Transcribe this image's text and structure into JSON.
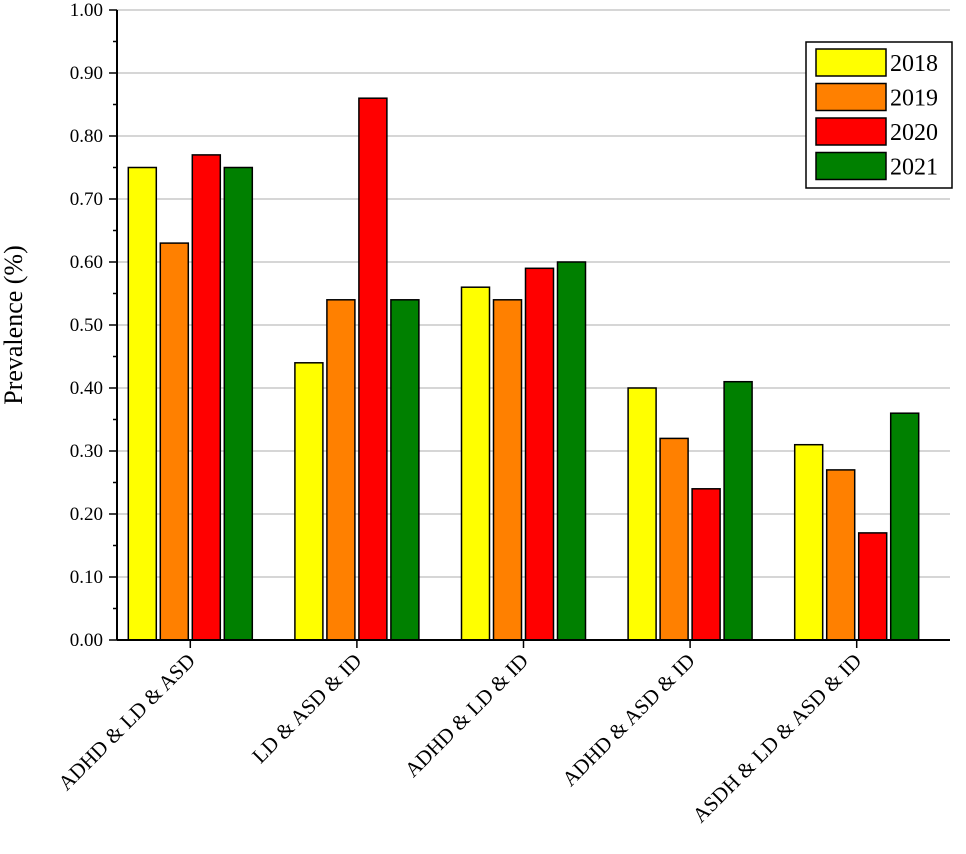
{
  "chart_data": {
    "type": "bar",
    "title": "",
    "xlabel": "",
    "ylabel": "Prevalence (%)",
    "ylim": [
      0,
      1.0
    ],
    "yticks": [
      "0.00",
      "0.10",
      "0.20",
      "0.30",
      "0.40",
      "0.50",
      "0.60",
      "0.70",
      "0.80",
      "0.90",
      "1.00"
    ],
    "grid": "horizontal",
    "legend_position": "top-right",
    "categories": [
      "ADHD & LD & ASD",
      "LD & ASD & ID",
      "ADHD & LD & ID",
      "ADHD & ASD & ID",
      "ASDH & LD & ASD & ID"
    ],
    "series": [
      {
        "name": "2018",
        "color": "#FFFF00",
        "values": [
          0.75,
          0.44,
          0.56,
          0.4,
          0.31
        ]
      },
      {
        "name": "2019",
        "color": "#FF8000",
        "values": [
          0.63,
          0.54,
          0.54,
          0.32,
          0.27
        ]
      },
      {
        "name": "2020",
        "color": "#FF0000",
        "values": [
          0.77,
          0.86,
          0.59,
          0.24,
          0.17
        ]
      },
      {
        "name": "2021",
        "color": "#008000",
        "values": [
          0.75,
          0.54,
          0.6,
          0.41,
          0.36
        ]
      }
    ]
  }
}
